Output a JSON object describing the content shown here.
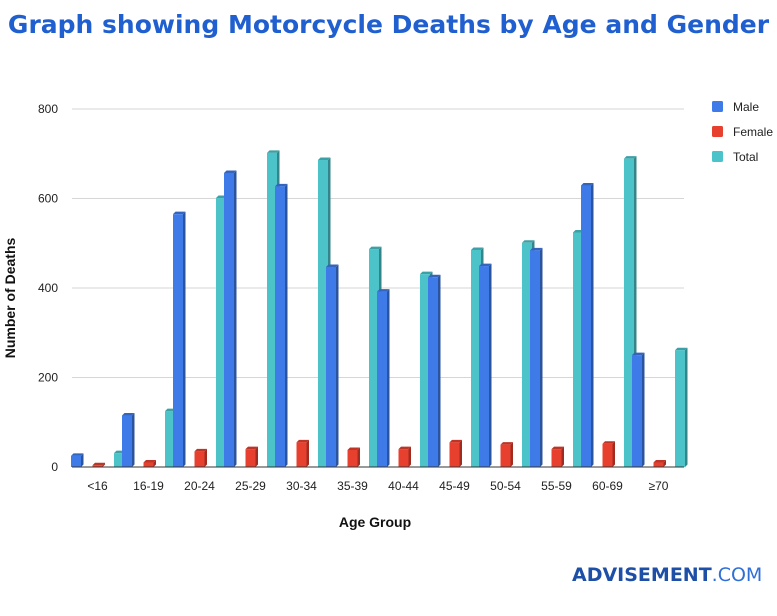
{
  "chart_data": {
    "type": "bar",
    "title": "Graph showing Motorcycle Deaths by Age and Gender",
    "xlabel": "Age Group",
    "ylabel": "Number of Deaths",
    "ylim": [
      0,
      800
    ],
    "yticks": [
      0,
      200,
      400,
      600,
      800
    ],
    "grid": true,
    "legend_position": "top-right",
    "categories": [
      "<16",
      "16-19",
      "20-24",
      "25-29",
      "30-34",
      "35-39",
      "40-44",
      "45-49",
      "50-54",
      "55-59",
      "60-69",
      "≥70"
    ],
    "series": [
      {
        "name": "Male",
        "color": "#3f7be8",
        "values": [
          25,
          115,
          565,
          657,
          627,
          447,
          392,
          424,
          449,
          484,
          629,
          250
        ]
      },
      {
        "name": "Female",
        "color": "#e8402f",
        "values": [
          4,
          10,
          35,
          40,
          55,
          38,
          40,
          55,
          50,
          40,
          52,
          10
        ]
      },
      {
        "name": "Total",
        "color": "#4cc3c9",
        "values": [
          31,
          125,
          601,
          702,
          686,
          487,
          431,
          485,
          501,
          524,
          689,
          261
        ]
      }
    ]
  },
  "branding": {
    "name": "ADVISEMENT",
    "suffix": ".COM"
  }
}
